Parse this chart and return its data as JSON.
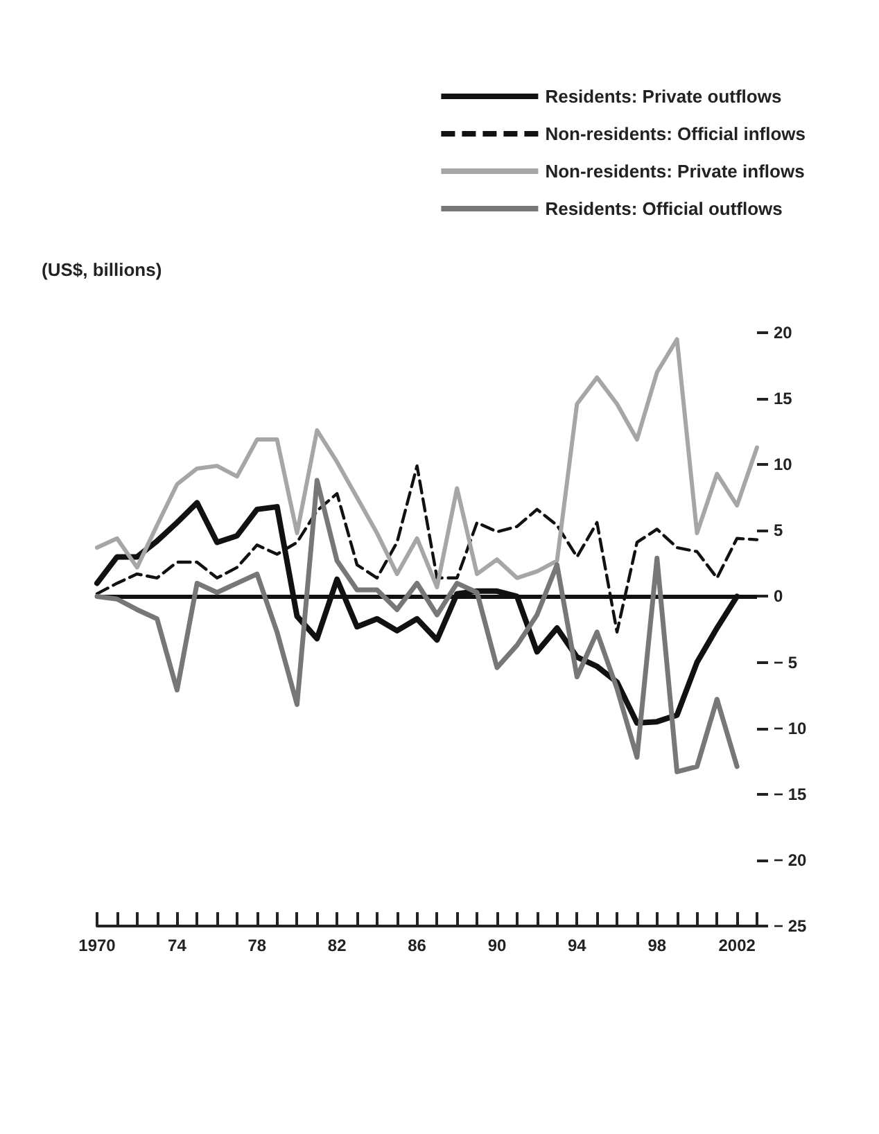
{
  "chart_data": {
    "type": "line",
    "ylabel": "(US$, billions)",
    "x": [
      1970,
      1971,
      1972,
      1973,
      1974,
      1975,
      1976,
      1977,
      1978,
      1979,
      1980,
      1981,
      1982,
      1983,
      1984,
      1985,
      1986,
      1987,
      1988,
      1989,
      1990,
      1991,
      1992,
      1993,
      1994,
      1995,
      1996,
      1997,
      1998,
      1999,
      2000,
      2001,
      2002,
      2003
    ],
    "series": [
      {
        "name": "Residents: Private outflows",
        "color": "#111111",
        "line_style": "solid",
        "values": [
          1.0,
          3.0,
          3.0,
          4.2,
          5.6,
          7.1,
          4.1,
          4.6,
          6.6,
          6.8,
          -1.5,
          -3.2,
          1.3,
          -2.3,
          -1.7,
          -2.6,
          -1.7,
          -3.3,
          0.2,
          0.4,
          0.4,
          0.0,
          -4.2,
          -2.4,
          -4.6,
          -5.3,
          -6.5,
          -9.6,
          -9.5,
          -9.0,
          -5.0,
          -2.4,
          0.0,
          null
        ]
      },
      {
        "name": "Non-residents: Official inflows",
        "color": "#111111",
        "line_style": "dashed",
        "values": [
          0.2,
          1.0,
          1.7,
          1.4,
          2.6,
          2.6,
          1.4,
          2.2,
          3.9,
          3.2,
          4.1,
          6.5,
          7.8,
          2.4,
          1.4,
          4.1,
          9.9,
          1.4,
          1.4,
          5.6,
          4.9,
          5.3,
          6.6,
          5.4,
          3.0,
          5.6,
          -2.7,
          4.1,
          5.1,
          3.7,
          3.4,
          1.4,
          4.4,
          4.3
        ]
      },
      {
        "name": "Non-residents: Private inflows",
        "color": "#a6a6a6",
        "line_style": "solid",
        "values": [
          3.7,
          4.4,
          2.2,
          5.4,
          8.5,
          9.7,
          9.9,
          9.1,
          11.9,
          11.9,
          4.8,
          12.6,
          10.2,
          7.5,
          4.8,
          1.7,
          4.4,
          0.7,
          8.2,
          1.7,
          2.8,
          1.4,
          1.9,
          2.7,
          14.6,
          16.6,
          14.6,
          11.9,
          17.0,
          19.5,
          4.8,
          9.3,
          6.9,
          11.3
        ]
      },
      {
        "name": "Residents: Official outflows",
        "color": "#777777",
        "line_style": "solid",
        "values": [
          0.0,
          -0.2,
          -1.0,
          -1.7,
          -7.1,
          1.0,
          0.3,
          1.0,
          1.7,
          -2.7,
          -8.2,
          8.8,
          2.7,
          0.5,
          0.5,
          -1.0,
          1.0,
          -1.4,
          1.0,
          0.3,
          -5.4,
          -3.7,
          -1.4,
          2.4,
          -6.1,
          -2.7,
          -7.0,
          -12.2,
          2.9,
          -13.3,
          -12.9,
          -7.8,
          -12.9,
          null
        ]
      }
    ],
    "xlim": [
      1970,
      2003
    ],
    "xticks": [
      1970,
      {
        "value": 1971,
        "label": null
      },
      {
        "value": 1972,
        "label": null
      },
      {
        "value": 1973,
        "label": null
      },
      {
        "value": 1974,
        "label": "74"
      },
      {
        "value": 1975,
        "label": null
      },
      {
        "value": 1976,
        "label": null
      },
      {
        "value": 1977,
        "label": null
      },
      {
        "value": 1978,
        "label": "78"
      },
      {
        "value": 1979,
        "label": null
      },
      {
        "value": 1980,
        "label": null
      },
      {
        "value": 1981,
        "label": null
      },
      {
        "value": 1982,
        "label": "82"
      },
      {
        "value": 1983,
        "label": null
      },
      {
        "value": 1984,
        "label": null
      },
      {
        "value": 1985,
        "label": null
      },
      {
        "value": 1986,
        "label": "86"
      },
      {
        "value": 1987,
        "label": null
      },
      {
        "value": 1988,
        "label": null
      },
      {
        "value": 1989,
        "label": null
      },
      {
        "value": 1990,
        "label": "90"
      },
      {
        "value": 1991,
        "label": null
      },
      {
        "value": 1992,
        "label": null
      },
      {
        "value": 1993,
        "label": null
      },
      {
        "value": 1994,
        "label": "94"
      },
      {
        "value": 1995,
        "label": null
      },
      {
        "value": 1996,
        "label": null
      },
      {
        "value": 1997,
        "label": null
      },
      {
        "value": 1998,
        "label": "98"
      },
      {
        "value": 1999,
        "label": null
      },
      {
        "value": 2000,
        "label": null
      },
      {
        "value": 2001,
        "label": null
      },
      {
        "value": 2002,
        "label": "2002"
      },
      {
        "value": 2003,
        "label": null
      }
    ],
    "ylim": [
      -25,
      20
    ],
    "yticks": [
      -25,
      -20,
      -15,
      -10,
      -5,
      0,
      5,
      10,
      15,
      20
    ],
    "ref_lines": [
      {
        "axis": "y",
        "value": 0,
        "label": null,
        "color": "#111111"
      }
    ],
    "grid": false,
    "legend": "top right",
    "marker": "none"
  }
}
